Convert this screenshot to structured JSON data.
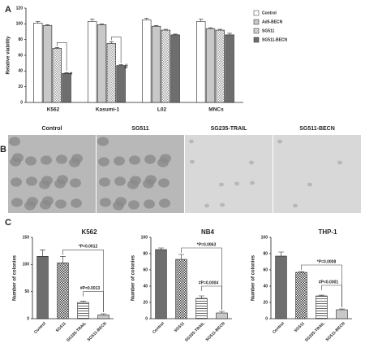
{
  "chart_data": [
    {
      "type": "bar",
      "panel": "A",
      "ylabel": "Relative viability",
      "categories": [
        "K562",
        "Kasumi-1",
        "L02",
        "MNCs"
      ],
      "series": [
        {
          "name": "Control",
          "color": "#ffffff",
          "values": [
            101,
            103,
            105,
            103
          ],
          "errors": [
            2,
            3,
            2,
            3
          ]
        },
        {
          "name": "Ad5-BECN",
          "color": "#c8c8c8",
          "values": [
            98,
            99,
            97,
            94
          ],
          "errors": [
            1,
            1,
            1,
            1
          ]
        },
        {
          "name": "SG511",
          "color": "#a0a0a0",
          "pattern": "checker",
          "values": [
            69,
            75,
            92,
            92
          ],
          "errors": [
            1,
            2,
            1,
            1
          ]
        },
        {
          "name": "SG511-BECN",
          "color": "#6e6e6e",
          "values": [
            37,
            47,
            86,
            86
          ],
          "errors": [
            1,
            1,
            1,
            2
          ]
        }
      ],
      "annotations": [
        "*",
        "#"
      ],
      "ylim": [
        0,
        120
      ],
      "yticks": [
        0,
        20,
        40,
        60,
        80,
        100,
        120
      ]
    },
    {
      "type": "bar",
      "panel": "C",
      "title": "K562",
      "ylabel": "Number of colonies",
      "categories": [
        "Control",
        "SG511",
        "SG235-TRAIL",
        "SG511-BECN"
      ],
      "values": [
        115,
        103,
        30,
        7
      ],
      "errors": [
        12,
        12,
        2,
        2
      ],
      "colors": [
        "#6e6e6e",
        "#ffffff",
        "#ffffff",
        "#c8c8c8"
      ],
      "patterns": [
        null,
        "checker",
        "hlines",
        null
      ],
      "annotations": [
        "*P=0.0012",
        "#P=0.0013"
      ],
      "ylim": [
        0,
        150
      ],
      "yticks": [
        0,
        50,
        100,
        150
      ]
    },
    {
      "type": "bar",
      "title": "NB4",
      "ylabel": "Number of colonies",
      "categories": [
        "Control",
        "SG511",
        "SG235-TRAIL",
        "SG511-BECN"
      ],
      "values": [
        85,
        73,
        25,
        7
      ],
      "errors": [
        2,
        6,
        3,
        2
      ],
      "colors": [
        "#6e6e6e",
        "#ffffff",
        "#ffffff",
        "#c8c8c8"
      ],
      "patterns": [
        null,
        "checker",
        "hlines",
        null
      ],
      "annotations": [
        "*P=0.0063",
        "#P=0.0004"
      ],
      "ylim": [
        0,
        100
      ],
      "yticks": [
        0,
        20,
        40,
        60,
        80,
        100
      ]
    },
    {
      "type": "bar",
      "title": "THP-1",
      "ylabel": "Number of colonies",
      "categories": [
        "Control",
        "SG511",
        "SG235-TRAIL",
        "SG511-BECN"
      ],
      "values": [
        77,
        57,
        28,
        11
      ],
      "errors": [
        5,
        1,
        1,
        1
      ],
      "colors": [
        "#6e6e6e",
        "#ffffff",
        "#ffffff",
        "#c8c8c8"
      ],
      "patterns": [
        null,
        "checker",
        "hlines",
        null
      ],
      "annotations": [
        "*P=0.0008",
        "#P<0.0001"
      ],
      "ylim": [
        0,
        100
      ],
      "yticks": [
        0,
        20,
        40,
        60,
        80,
        100
      ]
    }
  ],
  "panel_b": {
    "panel": "B",
    "images": [
      "Control",
      "SG511",
      "SG235-TRAIL",
      "SG511-BECN"
    ]
  }
}
